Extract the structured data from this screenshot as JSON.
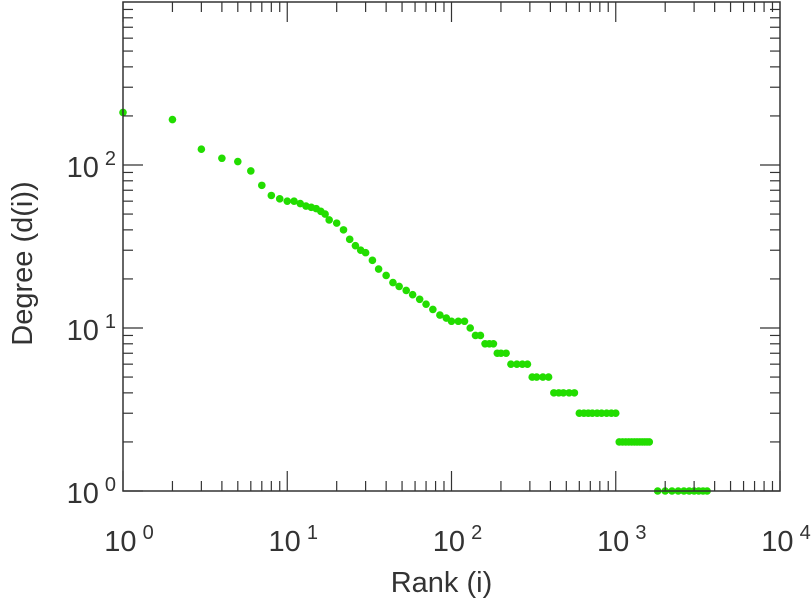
{
  "chart_data": {
    "type": "scatter",
    "xlabel": "Rank (i)",
    "ylabel": "Degree (d(i))",
    "x_scale": "log",
    "y_scale": "log",
    "xlim": [
      1,
      10000
    ],
    "ylim": [
      1,
      1000
    ],
    "x_ticks": [
      {
        "base": "10",
        "exp": "0",
        "value": 1
      },
      {
        "base": "10",
        "exp": "1",
        "value": 10
      },
      {
        "base": "10",
        "exp": "2",
        "value": 100
      },
      {
        "base": "10",
        "exp": "3",
        "value": 1000
      },
      {
        "base": "10",
        "exp": "4",
        "value": 10000
      }
    ],
    "y_ticks": [
      {
        "base": "10",
        "exp": "0",
        "value": 1
      },
      {
        "base": "10",
        "exp": "1",
        "value": 10
      },
      {
        "base": "10",
        "exp": "2",
        "value": 100
      }
    ],
    "grid": false,
    "marker_color": "#22dd00",
    "series": [
      {
        "x": [
          1,
          2,
          3,
          4,
          5,
          6,
          7,
          8,
          9,
          10,
          11,
          12,
          13,
          14,
          15,
          16,
          17,
          18,
          20,
          22,
          24,
          26,
          28,
          30,
          33,
          36,
          40,
          44,
          48,
          53,
          58,
          64,
          70,
          77,
          85,
          93,
          100,
          110,
          120,
          130,
          140,
          150,
          160,
          170,
          180,
          190,
          200,
          215,
          230,
          250,
          270,
          290,
          310,
          330,
          360,
          390,
          420,
          450,
          480,
          520,
          560,
          600,
          640,
          680,
          720,
          770,
          820,
          880,
          940,
          1000,
          1050,
          1100,
          1150,
          1200,
          1250,
          1300,
          1350,
          1400,
          1450,
          1500,
          1550,
          1600,
          1800,
          2000,
          2200,
          2400,
          2600,
          2800,
          3000,
          3200,
          3400,
          3600
        ],
        "y": [
          210,
          190,
          125,
          110,
          105,
          92,
          75,
          65,
          62,
          60,
          60,
          58,
          56,
          55,
          54,
          52,
          50,
          46,
          44,
          40,
          35,
          32,
          30,
          29,
          26,
          23,
          21,
          19,
          18,
          17,
          16,
          15,
          14,
          13,
          12,
          11.5,
          11,
          11,
          11,
          10,
          9,
          9,
          8,
          8,
          8,
          7,
          7,
          7,
          6,
          6,
          6,
          6,
          5,
          5,
          5,
          5,
          4,
          4,
          4,
          4,
          4,
          3,
          3,
          3,
          3,
          3,
          3,
          3,
          3,
          3,
          2,
          2,
          2,
          2,
          2,
          2,
          2,
          2,
          2,
          2,
          2,
          2,
          1,
          1,
          1,
          1,
          1,
          1,
          1,
          1,
          1,
          1
        ]
      }
    ]
  }
}
